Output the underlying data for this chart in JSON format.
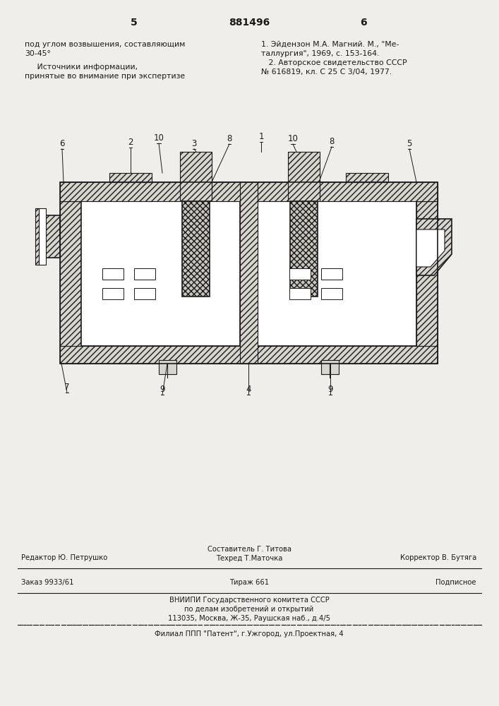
{
  "page_number_left": "5",
  "page_number_center": "881496",
  "page_number_right": "6",
  "top_left_text_1": "под углом возвышения, составляющим",
  "top_left_text_2": "30-45°",
  "top_left_text_3": "     Источники информации,",
  "top_left_text_4": "принятые во внимание при экспертизе",
  "top_right_text_1": "1. Эйдензон М.А. Магний. М., \"Ме-",
  "top_right_text_2": "таллургия\", 1969, с. 153-164.",
  "top_right_text_3": "   2. Авторское свидетельство СССР",
  "top_right_text_4": "№ 616819, кл. С 25 С 3/04, 1977.",
  "footer_editor": "Редактор Ю. Петрушко",
  "footer_compiler": "Составитель Г. Титова",
  "footer_tech": "Техред Т.Маточка",
  "footer_corrector": "Корректор В. Бутяга",
  "footer_order": "Заказ 9933/61",
  "footer_print": "Тираж 661",
  "footer_subscription": "Подписное",
  "footer_institute_1": "ВНИИПИ Государственного комитета СССР",
  "footer_institute_2": "по делам изобретений и открытий",
  "footer_institute_3": "113035, Москва, Ж-35, Раушская наб., д.4/5",
  "footer_branch": "Филиал ППП \"Патент\", г.Ужгород, ул.Проектная, 4",
  "bg_color": "#f0eeea",
  "line_color": "#1a1a1a"
}
